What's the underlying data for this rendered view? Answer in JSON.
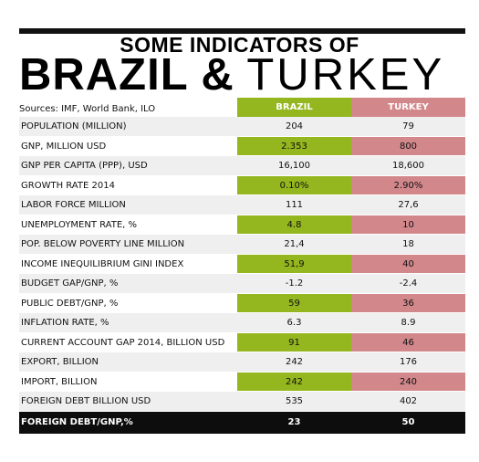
{
  "title": {
    "line1": "SOME INDICATORS OF",
    "line2_bold": "BRAZIL &",
    "line2_light": "TURKEY"
  },
  "sources": "Sources: IMF, World Bank, ILO",
  "columns": {
    "brazil": "BRAZIL",
    "turkey": "TURKEY"
  },
  "colors": {
    "brazil": "#94b61e",
    "turkey": "#d2878b",
    "shade": "#efefef",
    "footer": "#0d0d0d"
  },
  "rows": [
    {
      "label": "POPULATION (MILLION)",
      "brazil": "204",
      "turkey": "79"
    },
    {
      "label": "GNP, MILLION USD",
      "brazil": "2.353",
      "turkey": "800"
    },
    {
      "label": "GNP PER CAPITA (PPP), USD",
      "brazil": "16,100",
      "turkey": "18,600"
    },
    {
      "label": "GROWTH RATE 2014",
      "brazil": "0.10%",
      "turkey": "2.90%"
    },
    {
      "label": "LABOR FORCE  MILLION",
      "brazil": "111",
      "turkey": "27,6"
    },
    {
      "label": "UNEMPLOYMENT RATE, %",
      "brazil": "4.8",
      "turkey": "10"
    },
    {
      "label": "POP. BELOW POVERTY LINE  MILLION",
      "brazil": "21,4",
      "turkey": "18"
    },
    {
      "label": "INCOME INEQUILIBRIUM GINI INDEX",
      "brazil": "51,9",
      "turkey": "40"
    },
    {
      "label": "BUDGET GAP/GNP, %",
      "brazil": "-1.2",
      "turkey": "-2.4"
    },
    {
      "label": "PUBLIC DEBT/GNP, %",
      "brazil": "59",
      "turkey": "36"
    },
    {
      "label": "INFLATION RATE, %",
      "brazil": "6.3",
      "turkey": "8.9"
    },
    {
      "label": "CURRENT ACCOUNT GAP 2014, BILLION USD",
      "brazil": "91",
      "turkey": "46"
    },
    {
      "label": "EXPORT, BILLION",
      "brazil": "242",
      "turkey": "176"
    },
    {
      "label": "IMPORT, BILLION",
      "brazil": "242",
      "turkey": "240"
    },
    {
      "label": "FOREIGN DEBT BILLION USD",
      "brazil": "535",
      "turkey": "402"
    }
  ],
  "footer_row": {
    "label": "FOREIGN DEBT/GNP,%",
    "brazil": "23",
    "turkey": "50"
  }
}
